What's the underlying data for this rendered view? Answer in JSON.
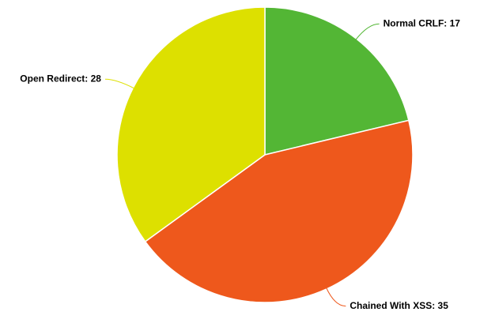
{
  "chart_data": {
    "type": "pie",
    "categories": [
      "Normal CRLF",
      "Chained With XSS",
      "Open Redirect"
    ],
    "values": [
      17,
      35,
      28
    ],
    "value_labels": [
      "Normal CRLF: 17",
      "Chained With XSS: 35",
      "Open Redirect: 28"
    ],
    "colors": [
      "#53b635",
      "#ee581c",
      "#dde000"
    ]
  }
}
